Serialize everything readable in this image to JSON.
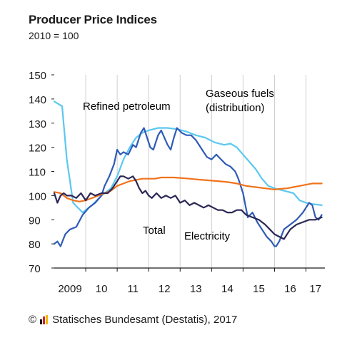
{
  "title": "Producer Price Indices",
  "subtitle": "2010 = 100",
  "footer": {
    "copyright_symbol": "©",
    "source": "Statisches Bundesamt (Destatis), 2017",
    "logo_icon": "destatis-logo-icon"
  },
  "chart_data": {
    "type": "line",
    "title": "Producer Price Indices",
    "subtitle": "2010 = 100",
    "ylim": [
      70,
      150
    ],
    "yticks": [
      70,
      80,
      90,
      100,
      110,
      120,
      130,
      140,
      150
    ],
    "xlim": [
      2009.0,
      2017.6
    ],
    "xtick_labels": [
      {
        "label": "2009",
        "x": 2009.5
      },
      {
        "label": "10",
        "x": 2010.5
      },
      {
        "label": "11",
        "x": 2011.5
      },
      {
        "label": "12",
        "x": 2012.5
      },
      {
        "label": "13",
        "x": 2013.5
      },
      {
        "label": "14",
        "x": 2014.5
      },
      {
        "label": "15",
        "x": 2015.5
      },
      {
        "label": "16",
        "x": 2016.5
      },
      {
        "label": "17",
        "x": 2017.3
      }
    ],
    "grid": "vertical year lines",
    "series": [
      {
        "name": "Gaseous fuels (distribution)",
        "color": "#5bc8f0",
        "x": [
          2009.0,
          2009.25,
          2009.4,
          2009.6,
          2009.9,
          2010.2,
          2010.5,
          2010.8,
          2011.0,
          2011.2,
          2011.4,
          2011.6,
          2011.8,
          2012.0,
          2012.3,
          2012.6,
          2012.9,
          2013.2,
          2013.5,
          2013.8,
          2014.1,
          2014.4,
          2014.6,
          2014.8,
          2015.0,
          2015.2,
          2015.4,
          2015.6,
          2015.8,
          2016.0,
          2016.3,
          2016.6,
          2016.8,
          2017.0,
          2017.2,
          2017.5
        ],
        "values": [
          139,
          137,
          115,
          97,
          93,
          96,
          100,
          103,
          108,
          115,
          120,
          124,
          126,
          127,
          128,
          128,
          127.5,
          126.5,
          125,
          124,
          122,
          121,
          121.5,
          120,
          117,
          114,
          111,
          107,
          104,
          103,
          102,
          101,
          98,
          97,
          96.5,
          96
        ]
      },
      {
        "name": "Refined petroleum",
        "color": "#2f5bb7",
        "x": [
          2009.0,
          2009.1,
          2009.2,
          2009.35,
          2009.5,
          2009.7,
          2009.9,
          2010.1,
          2010.3,
          2010.5,
          2010.6,
          2010.75,
          2010.9,
          2011.0,
          2011.1,
          2011.2,
          2011.35,
          2011.5,
          2011.6,
          2011.75,
          2011.85,
          2011.95,
          2012.05,
          2012.15,
          2012.3,
          2012.4,
          2012.5,
          2012.6,
          2012.7,
          2012.8,
          2012.9,
          2013.05,
          2013.2,
          2013.35,
          2013.5,
          2013.7,
          2013.85,
          2014.0,
          2014.15,
          2014.3,
          2014.45,
          2014.6,
          2014.75,
          2014.85,
          2015.0,
          2015.15,
          2015.3,
          2015.45,
          2015.6,
          2015.75,
          2015.9,
          2016.0,
          2016.05,
          2016.15,
          2016.3,
          2016.5,
          2016.7,
          2016.9,
          2017.0,
          2017.1,
          2017.2,
          2017.3,
          2017.4,
          2017.5
        ],
        "values": [
          80,
          81,
          79,
          84,
          86,
          87,
          92,
          95,
          97,
          100,
          104,
          108,
          113,
          119,
          117,
          118,
          117,
          121,
          120,
          126,
          128,
          124,
          120,
          119,
          125,
          127,
          124,
          121,
          119,
          124,
          128,
          126,
          125,
          125,
          123,
          119,
          116,
          115,
          117,
          115,
          113,
          112,
          110,
          107,
          101,
          91,
          93,
          89,
          86,
          83,
          81,
          79,
          79,
          81,
          86,
          88,
          90,
          93,
          95,
          97,
          96,
          91,
          90,
          92
        ]
      },
      {
        "name": "Total",
        "color": "#f0731c",
        "x": [
          2009.0,
          2009.2,
          2009.4,
          2009.6,
          2009.8,
          2010.0,
          2010.2,
          2010.4,
          2010.6,
          2010.8,
          2011.0,
          2011.2,
          2011.4,
          2011.6,
          2011.8,
          2012.0,
          2012.2,
          2012.4,
          2012.6,
          2012.8,
          2013.0,
          2013.3,
          2013.6,
          2013.9,
          2014.2,
          2014.5,
          2014.8,
          2015.1,
          2015.4,
          2015.7,
          2016.0,
          2016.2,
          2016.4,
          2016.6,
          2016.8,
          2017.0,
          2017.2,
          2017.5
        ],
        "values": [
          101.5,
          101,
          99,
          98,
          97.5,
          98,
          99,
          100,
          101,
          102,
          104,
          105,
          106,
          106.5,
          107,
          107,
          107,
          107.5,
          107.5,
          107.5,
          107.3,
          107,
          106.6,
          106.3,
          106,
          105.6,
          105,
          104,
          103.5,
          103,
          102.5,
          102.8,
          103,
          103.5,
          104,
          104.5,
          105,
          105
        ]
      },
      {
        "name": "Electricity",
        "color": "#2b2754",
        "x": [
          2009.0,
          2009.1,
          2009.2,
          2009.3,
          2009.4,
          2009.55,
          2009.7,
          2009.85,
          2010.0,
          2010.15,
          2010.3,
          2010.5,
          2010.7,
          2010.85,
          2011.0,
          2011.1,
          2011.2,
          2011.35,
          2011.5,
          2011.6,
          2011.7,
          2011.8,
          2011.9,
          2012.0,
          2012.1,
          2012.25,
          2012.4,
          2012.55,
          2012.7,
          2012.85,
          2013.0,
          2013.15,
          2013.3,
          2013.45,
          2013.6,
          2013.75,
          2013.9,
          2014.05,
          2014.2,
          2014.35,
          2014.5,
          2014.65,
          2014.8,
          2014.95,
          2015.1,
          2015.3,
          2015.5,
          2015.7,
          2015.85,
          2016.0,
          2016.15,
          2016.3,
          2016.5,
          2016.7,
          2016.9,
          2017.1,
          2017.3,
          2017.5
        ],
        "values": [
          101,
          97,
          100,
          101,
          100,
          100,
          99,
          101,
          98,
          101,
          100,
          101,
          101,
          103,
          106,
          108,
          108,
          107,
          108,
          106,
          103,
          101,
          102,
          100,
          99,
          101,
          99,
          100,
          99,
          100,
          97,
          98,
          96,
          97,
          96,
          95,
          96,
          95,
          94,
          94,
          93,
          93,
          94,
          94,
          92,
          91,
          90,
          88,
          86,
          84,
          83,
          82,
          86,
          88,
          89,
          90,
          90,
          91
        ]
      }
    ],
    "annotations": [
      "Refined petroleum",
      "Gaseous fuels",
      "(distribution)",
      "Total",
      "Electricity"
    ]
  }
}
